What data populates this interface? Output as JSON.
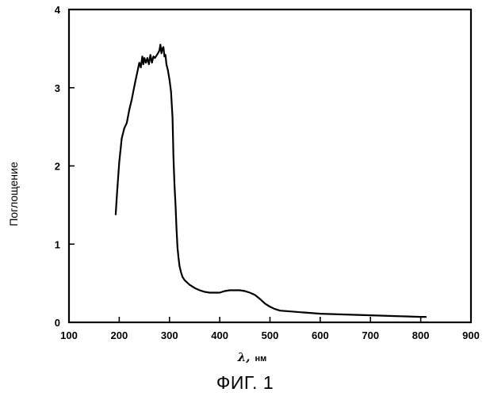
{
  "figure": {
    "caption": "ФИГ. 1"
  },
  "chart_data": {
    "type": "line",
    "title": "",
    "xlabel_symbol": "λ,",
    "xlabel_unit": "нм",
    "ylabel": "Поглощение",
    "xlim": [
      100,
      900
    ],
    "ylim": [
      0,
      4
    ],
    "xticks": [
      100,
      200,
      300,
      400,
      500,
      600,
      700,
      800,
      900
    ],
    "yticks": [
      0,
      1,
      2,
      3,
      4
    ],
    "grid": false,
    "line_color": "#000000",
    "series": [
      {
        "x": [
          193,
          196,
          200,
          205,
          210,
          215,
          220,
          225,
          228,
          232,
          236,
          240,
          243,
          246,
          248,
          250,
          253,
          256,
          259,
          262,
          265,
          268,
          271,
          275,
          278,
          280,
          282,
          284,
          286,
          288,
          290,
          292,
          294,
          297,
          300,
          303,
          306,
          308,
          310,
          312,
          314,
          316,
          318,
          320,
          323,
          326,
          330,
          340,
          350,
          360,
          370,
          380,
          390,
          400,
          410,
          420,
          430,
          440,
          450,
          460,
          470,
          480,
          490,
          500,
          510,
          520,
          540,
          560,
          580,
          600,
          650,
          700,
          750,
          800,
          810
        ],
        "y": [
          1.38,
          1.68,
          2.05,
          2.35,
          2.48,
          2.55,
          2.72,
          2.85,
          2.95,
          3.08,
          3.2,
          3.32,
          3.26,
          3.4,
          3.3,
          3.38,
          3.32,
          3.38,
          3.3,
          3.42,
          3.32,
          3.4,
          3.38,
          3.42,
          3.45,
          3.48,
          3.55,
          3.44,
          3.5,
          3.52,
          3.4,
          3.42,
          3.3,
          3.22,
          3.1,
          2.95,
          2.62,
          2.1,
          1.75,
          1.5,
          1.2,
          0.95,
          0.82,
          0.72,
          0.64,
          0.58,
          0.54,
          0.48,
          0.44,
          0.41,
          0.39,
          0.38,
          0.38,
          0.38,
          0.4,
          0.41,
          0.41,
          0.41,
          0.4,
          0.38,
          0.35,
          0.3,
          0.24,
          0.2,
          0.17,
          0.15,
          0.14,
          0.13,
          0.12,
          0.11,
          0.1,
          0.09,
          0.08,
          0.07,
          0.07
        ]
      }
    ]
  }
}
